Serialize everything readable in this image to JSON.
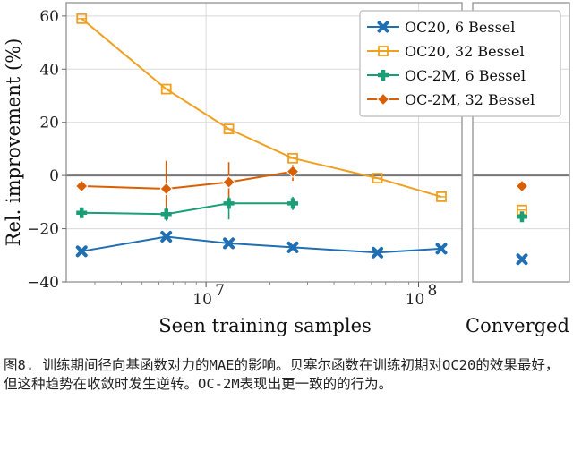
{
  "chart_data": {
    "type": "line",
    "x_scale": "log",
    "xlabel": "Seen training samples",
    "ylabel": "Rel. improvement (%)",
    "ylim": [
      -40,
      65
    ],
    "xlim": [
      2200000,
      160000000
    ],
    "yticks": [
      "60",
      "40",
      "20",
      "0",
      "−20",
      "−40"
    ],
    "xticks": [
      "10",
      "10"
    ],
    "xtick_exponents": [
      "7",
      "8"
    ],
    "grid": true,
    "legend_position": "top-right",
    "converged_label": "Converged",
    "series": [
      {
        "name": "OC20, 6 Bessel",
        "color": "#1f6fb2",
        "marker": "x",
        "x": [
          2600000,
          6500000,
          12800000,
          25600000,
          64000000,
          128000000
        ],
        "y": [
          -28.5,
          -23,
          -25.5,
          -27,
          -29,
          -27.5
        ],
        "converged": -31.5
      },
      {
        "name": "OC20, 32 Bessel",
        "color": "#f0a020",
        "marker": "square",
        "x": [
          2600000,
          6500000,
          12800000,
          25600000,
          64000000,
          128000000
        ],
        "y": [
          59,
          32.5,
          17.5,
          6.5,
          -1,
          -8
        ],
        "converged": -13
      },
      {
        "name": "OC-2M, 6 Bessel",
        "color": "#1a9e77",
        "marker": "plus",
        "x": [
          2600000,
          6500000,
          12800000,
          25600000
        ],
        "y": [
          -14,
          -14.5,
          -10.5,
          -10.5
        ],
        "converged": -15.5
      },
      {
        "name": "OC-2M, 32 Bessel",
        "color": "#d95f02",
        "marker": "diamond",
        "x": [
          2600000,
          6500000,
          12800000,
          25600000
        ],
        "y": [
          -4,
          -5,
          -2.5,
          1.5
        ],
        "converged": -4
      }
    ]
  },
  "caption": "图8. 训练期间径向基函数对力的MAE的影响。贝塞尔函数在训练初期对OC20的效果最好，但这种趋势在收敛时发生逆转。OC-2M表现出更一致的的行为。"
}
